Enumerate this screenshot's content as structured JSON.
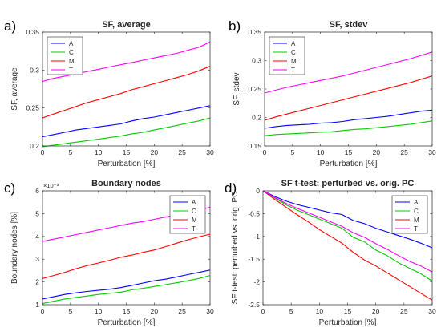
{
  "chart_data": [
    {
      "type": "line",
      "panel_letter": "a)",
      "title": "SF, average",
      "xlabel": "Perturbation [%]",
      "ylabel": "SF, average",
      "xlim": [
        0,
        30
      ],
      "ylim": [
        0.2,
        0.35
      ],
      "xticks": [
        0,
        5,
        10,
        15,
        20,
        25,
        30
      ],
      "xtick_labels": [
        "0",
        "5",
        "10",
        "15",
        "20",
        "25",
        "30"
      ],
      "yticks": [
        0.2,
        0.25,
        0.3,
        0.35
      ],
      "ytick_labels": [
        "0.2",
        "0.25",
        "0.3",
        "0.35"
      ],
      "exponent_label": "",
      "legend_position": "top-left",
      "x": [
        0,
        2,
        4,
        6,
        8,
        10,
        12,
        14,
        16,
        18,
        20,
        22,
        24,
        26,
        28,
        30
      ],
      "series": [
        {
          "name": "A",
          "color": "#0000ff",
          "values": [
            0.212,
            0.215,
            0.218,
            0.221,
            0.223,
            0.225,
            0.227,
            0.229,
            0.233,
            0.236,
            0.238,
            0.241,
            0.244,
            0.247,
            0.25,
            0.253
          ]
        },
        {
          "name": "C",
          "color": "#00cc00",
          "values": [
            0.199,
            0.201,
            0.203,
            0.205,
            0.207,
            0.209,
            0.211,
            0.213,
            0.216,
            0.218,
            0.221,
            0.224,
            0.227,
            0.23,
            0.233,
            0.237
          ]
        },
        {
          "name": "M",
          "color": "#ff0000",
          "values": [
            0.237,
            0.242,
            0.247,
            0.252,
            0.257,
            0.261,
            0.265,
            0.269,
            0.274,
            0.278,
            0.282,
            0.286,
            0.29,
            0.294,
            0.299,
            0.305
          ]
        },
        {
          "name": "T",
          "color": "#ff00ff",
          "values": [
            0.285,
            0.289,
            0.292,
            0.295,
            0.298,
            0.301,
            0.304,
            0.307,
            0.31,
            0.313,
            0.316,
            0.319,
            0.322,
            0.326,
            0.33,
            0.337
          ]
        }
      ]
    },
    {
      "type": "line",
      "panel_letter": "b)",
      "title": "SF, stdev",
      "xlabel": "Perturbation [%]",
      "ylabel": "SF, stdev",
      "xlim": [
        0,
        30
      ],
      "ylim": [
        0.15,
        0.35
      ],
      "xticks": [
        0,
        5,
        10,
        15,
        20,
        25,
        30
      ],
      "xtick_labels": [
        "0",
        "5",
        "10",
        "15",
        "20",
        "25",
        "30"
      ],
      "yticks": [
        0.15,
        0.2,
        0.25,
        0.3,
        0.35
      ],
      "ytick_labels": [
        "0.15",
        "0.2",
        "0.25",
        "0.3",
        "0.35"
      ],
      "exponent_label": "",
      "legend_position": "top-left",
      "x": [
        0,
        2,
        4,
        6,
        8,
        10,
        12,
        14,
        16,
        18,
        20,
        22,
        24,
        26,
        28,
        30
      ],
      "series": [
        {
          "name": "A",
          "color": "#0000ff",
          "values": [
            0.181,
            0.184,
            0.186,
            0.187,
            0.188,
            0.19,
            0.191,
            0.193,
            0.196,
            0.198,
            0.2,
            0.202,
            0.205,
            0.208,
            0.211,
            0.213
          ]
        },
        {
          "name": "C",
          "color": "#00cc00",
          "values": [
            0.168,
            0.17,
            0.171,
            0.172,
            0.173,
            0.174,
            0.175,
            0.177,
            0.179,
            0.18,
            0.182,
            0.184,
            0.186,
            0.188,
            0.191,
            0.194
          ]
        },
        {
          "name": "M",
          "color": "#ff0000",
          "values": [
            0.195,
            0.201,
            0.206,
            0.211,
            0.216,
            0.221,
            0.226,
            0.231,
            0.236,
            0.241,
            0.246,
            0.251,
            0.256,
            0.261,
            0.267,
            0.273
          ]
        },
        {
          "name": "T",
          "color": "#ff00ff",
          "values": [
            0.243,
            0.248,
            0.253,
            0.257,
            0.261,
            0.265,
            0.269,
            0.273,
            0.278,
            0.283,
            0.288,
            0.293,
            0.298,
            0.303,
            0.309,
            0.315
          ]
        }
      ]
    },
    {
      "type": "line",
      "panel_letter": "c)",
      "title": "Boundary nodes",
      "xlabel": "Perturbation [%]",
      "ylabel": "Boundary nodes [%]",
      "xlim": [
        0,
        30
      ],
      "ylim": [
        0.001,
        0.006
      ],
      "xticks": [
        0,
        5,
        10,
        15,
        20,
        25,
        30
      ],
      "xtick_labels": [
        "0",
        "5",
        "10",
        "15",
        "20",
        "25",
        "30"
      ],
      "yticks": [
        0.001,
        0.002,
        0.003,
        0.004,
        0.005,
        0.006
      ],
      "ytick_labels": [
        "1",
        "2",
        "3",
        "4",
        "5",
        "6"
      ],
      "exponent_label": "×10⁻³",
      "legend_position": "top-right",
      "x": [
        0,
        2,
        4,
        6,
        8,
        10,
        12,
        14,
        16,
        18,
        20,
        22,
        24,
        26,
        28,
        30
      ],
      "series": [
        {
          "name": "A",
          "color": "#0000ff",
          "values": [
            0.00125,
            0.00135,
            0.00145,
            0.00152,
            0.00158,
            0.00163,
            0.00168,
            0.00175,
            0.00185,
            0.00195,
            0.00205,
            0.00212,
            0.00222,
            0.00232,
            0.00242,
            0.00252
          ]
        },
        {
          "name": "C",
          "color": "#00cc00",
          "values": [
            0.00105,
            0.00115,
            0.00125,
            0.00132,
            0.00138,
            0.00145,
            0.0015,
            0.00155,
            0.00165,
            0.00172,
            0.0018,
            0.00188,
            0.00196,
            0.00205,
            0.00215,
            0.00228
          ]
        },
        {
          "name": "M",
          "color": "#ff0000",
          "values": [
            0.00215,
            0.00228,
            0.00242,
            0.00258,
            0.00272,
            0.00283,
            0.00295,
            0.00308,
            0.00318,
            0.0033,
            0.0034,
            0.00355,
            0.0037,
            0.00385,
            0.00398,
            0.0041
          ]
        },
        {
          "name": "T",
          "color": "#ff00ff",
          "values": [
            0.00378,
            0.00388,
            0.00398,
            0.00408,
            0.00418,
            0.00428,
            0.00438,
            0.00448,
            0.00458,
            0.00465,
            0.00475,
            0.00485,
            0.00495,
            0.00505,
            0.00515,
            0.00528
          ]
        }
      ]
    },
    {
      "type": "line",
      "panel_letter": "d)",
      "title": "SF t-test: perturbed vs. orig. PC",
      "xlabel": "Perturbation [%]",
      "ylabel": "SF t-test: perturbed vs. orig. PC",
      "xlim": [
        0,
        30
      ],
      "ylim": [
        -2.5,
        0
      ],
      "xticks": [
        0,
        5,
        10,
        15,
        20,
        25,
        30
      ],
      "xtick_labels": [
        "0",
        "5",
        "10",
        "15",
        "20",
        "25",
        "30"
      ],
      "yticks": [
        -2.5,
        -2,
        -1.5,
        -1,
        -0.5,
        0
      ],
      "ytick_labels": [
        "-2.5",
        "-2",
        "-1.5",
        "-1",
        "-0.5",
        "0"
      ],
      "exponent_label": "",
      "legend_position": "top-right",
      "x": [
        0,
        2,
        4,
        6,
        8,
        10,
        12,
        14,
        16,
        18,
        20,
        22,
        24,
        26,
        28,
        30
      ],
      "series": [
        {
          "name": "A",
          "color": "#0000ff",
          "values": [
            0,
            -0.12,
            -0.22,
            -0.3,
            -0.36,
            -0.42,
            -0.48,
            -0.52,
            -0.65,
            -0.72,
            -0.82,
            -0.9,
            -0.98,
            -1.06,
            -1.15,
            -1.25
          ]
        },
        {
          "name": "C",
          "color": "#00cc00",
          "values": [
            0,
            -0.15,
            -0.3,
            -0.42,
            -0.52,
            -0.62,
            -0.72,
            -0.82,
            -1.02,
            -1.12,
            -1.3,
            -1.42,
            -1.58,
            -1.7,
            -1.82,
            -1.98
          ]
        },
        {
          "name": "M",
          "color": "#ff0000",
          "values": [
            0,
            -0.18,
            -0.35,
            -0.52,
            -0.68,
            -0.85,
            -1.0,
            -1.15,
            -1.35,
            -1.52,
            -1.65,
            -1.8,
            -1.95,
            -2.1,
            -2.25,
            -2.4
          ]
        },
        {
          "name": "T",
          "color": "#ff00ff",
          "values": [
            0,
            -0.14,
            -0.27,
            -0.38,
            -0.48,
            -0.58,
            -0.68,
            -0.78,
            -0.92,
            -1.02,
            -1.16,
            -1.28,
            -1.42,
            -1.55,
            -1.65,
            -1.78
          ]
        }
      ]
    }
  ]
}
